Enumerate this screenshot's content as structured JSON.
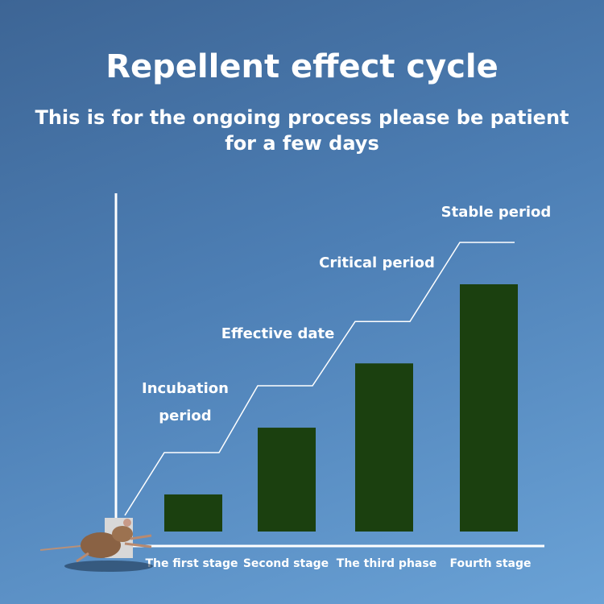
{
  "title": "Repellent effect cycle",
  "subtitle": "This is for the ongoing process please be patient for a few days",
  "chart_data": {
    "type": "bar",
    "title": "Repellent effect cycle",
    "categories": [
      "The first stage",
      "Second stage",
      "The third phase",
      "Fourth stage"
    ],
    "values": [
      15,
      42,
      68,
      100
    ],
    "ylim": [
      0,
      130
    ],
    "grid": false,
    "bar_color": "#1b400f",
    "step_line_labels": [
      [
        "Incubation",
        "period"
      ],
      [
        "Effective date"
      ],
      [
        "Critical period"
      ],
      [
        "Stable period"
      ]
    ]
  }
}
